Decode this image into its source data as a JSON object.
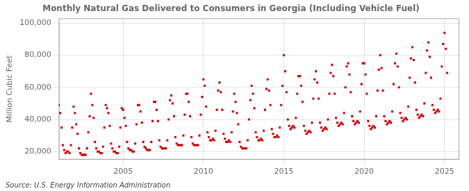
{
  "chart_data": {
    "type": "scatter",
    "title": "Monthly Natural Gas Delivered to Consumers in Georgia (Including Vehicle Fuel)",
    "y_label": "Million Cubic Feet",
    "annotations": [
      "Source: U.S. Energy Information Administration"
    ],
    "color": "#cc0000",
    "marker": "square",
    "grid": true,
    "xlim": [
      2001.0,
      2025.92
    ],
    "xticks": [
      2005,
      2010,
      2015,
      2020,
      2025
    ],
    "ylim": [
      15000,
      103000
    ],
    "yticks": [
      {
        "value": 20000,
        "label": "20,000"
      },
      {
        "value": 40000,
        "label": "40,000"
      },
      {
        "value": 60000,
        "label": "60,000"
      },
      {
        "value": 80000,
        "label": "80,000"
      },
      {
        "value": 100000,
        "label": "100,000"
      }
    ],
    "x": [
      2001,
      2001.0833,
      2001.1667,
      2001.25,
      2001.3333,
      2001.4167,
      2001.5,
      2001.5833,
      2001.6667,
      2001.75,
      2001.8333,
      2001.9167,
      2002,
      2002.0833,
      2002.1667,
      2002.25,
      2002.3333,
      2002.4167,
      2002.5,
      2002.5833,
      2002.6667,
      2002.75,
      2002.8333,
      2002.9167,
      2003,
      2003.0833,
      2003.1667,
      2003.25,
      2003.3333,
      2003.4167,
      2003.5,
      2003.5833,
      2003.6667,
      2003.75,
      2003.8333,
      2003.9167,
      2004,
      2004.0833,
      2004.1667,
      2004.25,
      2004.3333,
      2004.4167,
      2004.5,
      2004.5833,
      2004.6667,
      2004.75,
      2004.8333,
      2004.9167,
      2005,
      2005.0833,
      2005.1667,
      2005.25,
      2005.3333,
      2005.4167,
      2005.5,
      2005.5833,
      2005.6667,
      2005.75,
      2005.8333,
      2005.9167,
      2006,
      2006.0833,
      2006.1667,
      2006.25,
      2006.3333,
      2006.4167,
      2006.5,
      2006.5833,
      2006.6667,
      2006.75,
      2006.8333,
      2006.9167,
      2007,
      2007.0833,
      2007.1667,
      2007.25,
      2007.3333,
      2007.4167,
      2007.5,
      2007.5833,
      2007.6667,
      2007.75,
      2007.8333,
      2007.9167,
      2008,
      2008.0833,
      2008.1667,
      2008.25,
      2008.3333,
      2008.4167,
      2008.5,
      2008.5833,
      2008.6667,
      2008.75,
      2008.8333,
      2008.9167,
      2009,
      2009.0833,
      2009.1667,
      2009.25,
      2009.3333,
      2009.4167,
      2009.5,
      2009.5833,
      2009.6667,
      2009.75,
      2009.8333,
      2009.9167,
      2010,
      2010.0833,
      2010.1667,
      2010.25,
      2010.3333,
      2010.4167,
      2010.5,
      2010.5833,
      2010.6667,
      2010.75,
      2010.8333,
      2010.9167,
      2011,
      2011.0833,
      2011.1667,
      2011.25,
      2011.3333,
      2011.4167,
      2011.5,
      2011.5833,
      2011.6667,
      2011.75,
      2011.8333,
      2011.9167,
      2012,
      2012.0833,
      2012.1667,
      2012.25,
      2012.3333,
      2012.4167,
      2012.5,
      2012.5833,
      2012.6667,
      2012.75,
      2012.8333,
      2012.9167,
      2013,
      2013.0833,
      2013.1667,
      2013.25,
      2013.3333,
      2013.4167,
      2013.5,
      2013.5833,
      2013.6667,
      2013.75,
      2013.8333,
      2013.9167,
      2014,
      2014.0833,
      2014.1667,
      2014.25,
      2014.3333,
      2014.4167,
      2014.5,
      2014.5833,
      2014.6667,
      2014.75,
      2014.8333,
      2014.9167,
      2015,
      2015.0833,
      2015.1667,
      2015.25,
      2015.3333,
      2015.4167,
      2015.5,
      2015.5833,
      2015.6667,
      2015.75,
      2015.8333,
      2015.9167,
      2016,
      2016.0833,
      2016.1667,
      2016.25,
      2016.3333,
      2016.4167,
      2016.5,
      2016.5833,
      2016.6667,
      2016.75,
      2016.8333,
      2016.9167,
      2017,
      2017.0833,
      2017.1667,
      2017.25,
      2017.3333,
      2017.4167,
      2017.5,
      2017.5833,
      2017.6667,
      2017.75,
      2017.8333,
      2017.9167,
      2018,
      2018.0833,
      2018.1667,
      2018.25,
      2018.3333,
      2018.4167,
      2018.5,
      2018.5833,
      2018.6667,
      2018.75,
      2018.8333,
      2018.9167,
      2019,
      2019.0833,
      2019.1667,
      2019.25,
      2019.3333,
      2019.4167,
      2019.5,
      2019.5833,
      2019.6667,
      2019.75,
      2019.8333,
      2019.9167,
      2020,
      2020.0833,
      2020.1667,
      2020.25,
      2020.3333,
      2020.4167,
      2020.5,
      2020.5833,
      2020.6667,
      2020.75,
      2020.8333,
      2020.9167,
      2021,
      2021.0833,
      2021.1667,
      2021.25,
      2021.3333,
      2021.4167,
      2021.5,
      2021.5833,
      2021.6667,
      2021.75,
      2021.8333,
      2021.9167,
      2022,
      2022.0833,
      2022.1667,
      2022.25,
      2022.3333,
      2022.4167,
      2022.5,
      2022.5833,
      2022.6667,
      2022.75,
      2022.8333,
      2022.9167,
      2023,
      2023.0833,
      2023.1667,
      2023.25,
      2023.3333,
      2023.4167,
      2023.5,
      2023.5833,
      2023.6667,
      2023.75,
      2023.8333,
      2023.9167,
      2024,
      2024.0833,
      2024.1667,
      2024.25,
      2024.3333,
      2024.4167,
      2024.5,
      2024.5833,
      2024.6667,
      2024.75,
      2024.8333,
      2024.9167,
      2025,
      2025.0833,
      2025.1667
    ],
    "values": [
      49000,
      44000,
      35000,
      24000,
      21000,
      19000,
      20000,
      20000,
      19000,
      24000,
      35000,
      48000,
      44000,
      37000,
      31000,
      22000,
      19000,
      18000,
      18000,
      18000,
      18000,
      22000,
      32000,
      42000,
      56000,
      49000,
      41000,
      26000,
      22000,
      20000,
      20000,
      19000,
      19000,
      23000,
      35000,
      49000,
      47000,
      44000,
      36000,
      25000,
      22000,
      20000,
      20000,
      19000,
      19000,
      23000,
      35000,
      47000,
      46000,
      41000,
      36000,
      26000,
      22000,
      21000,
      21000,
      20000,
      20000,
      25000,
      37000,
      49000,
      49000,
      45000,
      38000,
      26000,
      23000,
      22000,
      21000,
      21000,
      21000,
      26000,
      39000,
      51000,
      51000,
      46000,
      39000,
      27000,
      23000,
      22000,
      22000,
      22000,
      22000,
      27000,
      40000,
      52000,
      55000,
      50000,
      42000,
      29000,
      25000,
      24000,
      24000,
      24000,
      24000,
      30000,
      43000,
      56000,
      56000,
      51000,
      42000,
      29000,
      25000,
      24000,
      24000,
      24000,
      24000,
      30000,
      43000,
      54000,
      65000,
      61000,
      48000,
      32000,
      29000,
      27000,
      27000,
      28000,
      27000,
      33000,
      46000,
      58000,
      63000,
      57000,
      46000,
      31000,
      28000,
      26000,
      26000,
      27000,
      26000,
      32000,
      45000,
      56000,
      51000,
      44000,
      37000,
      26000,
      23000,
      22000,
      22000,
      22000,
      22000,
      27000,
      40000,
      52000,
      61000,
      56000,
      47000,
      32000,
      29000,
      27000,
      27000,
      28000,
      27000,
      33000,
      46000,
      59000,
      65000,
      58000,
      49000,
      34000,
      31000,
      29000,
      29000,
      30000,
      29000,
      35000,
      49000,
      61000,
      80000,
      70000,
      57000,
      40000,
      36000,
      34000,
      35000,
      36000,
      35000,
      41000,
      56000,
      67000,
      67000,
      61000,
      51000,
      36000,
      33000,
      31000,
      32000,
      33000,
      32000,
      38000,
      53000,
      65000,
      70000,
      63000,
      53000,
      38000,
      35000,
      33000,
      34000,
      35000,
      34000,
      40000,
      56000,
      69000,
      74000,
      67000,
      56000,
      41000,
      38000,
      36000,
      37000,
      38000,
      37000,
      44000,
      60000,
      73000,
      75000,
      68000,
      57000,
      42000,
      39000,
      37000,
      38000,
      39000,
      38000,
      45000,
      62000,
      75000,
      75000,
      68000,
      56000,
      39000,
      36000,
      34000,
      35000,
      36000,
      35000,
      42000,
      58000,
      71000,
      80000,
      72000,
      58000,
      42000,
      39000,
      37000,
      38000,
      39000,
      38000,
      45000,
      62000,
      75000,
      81000,
      73000,
      60000,
      44000,
      41000,
      39000,
      40000,
      41000,
      40000,
      48000,
      66000,
      78000,
      85000,
      77000,
      63000,
      46000,
      43000,
      41000,
      42000,
      43000,
      42000,
      50000,
      69000,
      83000,
      88000,
      79000,
      66000,
      49000,
      46000,
      44000,
      45000,
      46000,
      45000,
      53000,
      73000,
      87000,
      94000,
      84000,
      69000
    ]
  }
}
